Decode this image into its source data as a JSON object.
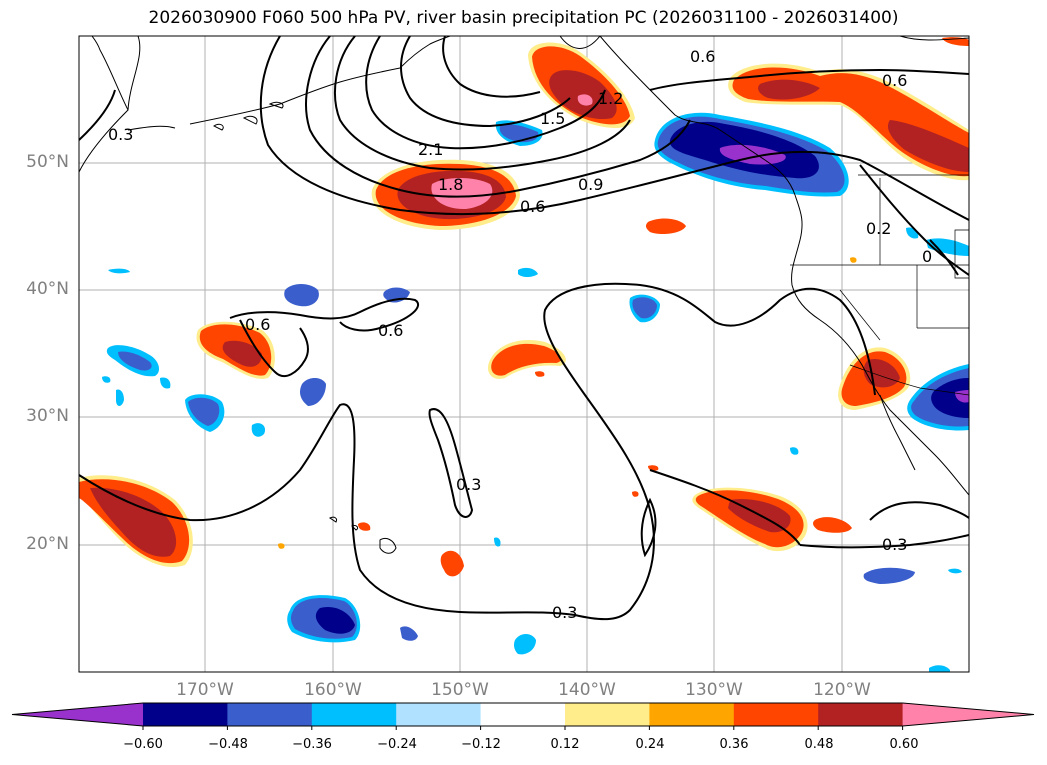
{
  "title": "2026030900 F060 500 hPa PV, river basin precipitation PC (2026031100 - 2026031400)",
  "lat_labels": [
    "50°N",
    "40°N",
    "30°N",
    "20°N"
  ],
  "lon_labels": [
    "170°W",
    "160°W",
    "150°W",
    "140°W",
    "130°W",
    "120°W"
  ],
  "colorbar": {
    "ticks": [
      "−0.60",
      "−0.48",
      "−0.36",
      "−0.24",
      "−0.12",
      "0.12",
      "0.24",
      "0.36",
      "0.48",
      "0.60"
    ],
    "colors": [
      "#9932cc",
      "#00008b",
      "#3a5fcd",
      "#00bfff",
      "#b0e2ff",
      "#ffffff",
      "#ffec8b",
      "#ffa500",
      "#ff4500",
      "#b22222",
      "#ff82ab"
    ]
  },
  "contour_labels": [
    "1.2",
    "1.5",
    "2.1",
    "1.8",
    "0.9",
    "0.6",
    "0.6",
    "0.3",
    "0.6",
    "0.2",
    "0.6",
    "0.3",
    "0.3",
    "0.3",
    "0.6",
    "0"
  ],
  "colors": {
    "grid": "#b0b0b0",
    "contour": "#000000",
    "axis_label": "#808080"
  }
}
